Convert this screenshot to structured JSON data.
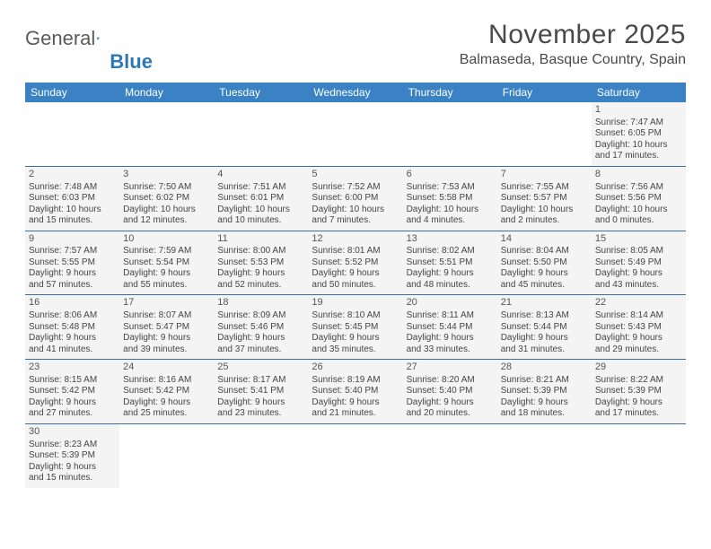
{
  "logo": {
    "part1": "General",
    "part2": "Blue"
  },
  "title": "November 2025",
  "location": "Balmaseda, Basque Country, Spain",
  "colors": {
    "header_bg": "#3a82c4",
    "header_text": "#ffffff",
    "border": "#3a6fa5",
    "cell_bg": "#f4f4f4",
    "text": "#454545",
    "logo_gray": "#5a5a5a",
    "logo_blue": "#2f78b7"
  },
  "day_names": [
    "Sunday",
    "Monday",
    "Tuesday",
    "Wednesday",
    "Thursday",
    "Friday",
    "Saturday"
  ],
  "weeks": [
    [
      {
        "blank": true
      },
      {
        "blank": true
      },
      {
        "blank": true
      },
      {
        "blank": true
      },
      {
        "blank": true
      },
      {
        "blank": true
      },
      {
        "num": "1",
        "sunrise": "Sunrise: 7:47 AM",
        "sunset": "Sunset: 6:05 PM",
        "day1": "Daylight: 10 hours",
        "day2": "and 17 minutes."
      }
    ],
    [
      {
        "num": "2",
        "sunrise": "Sunrise: 7:48 AM",
        "sunset": "Sunset: 6:03 PM",
        "day1": "Daylight: 10 hours",
        "day2": "and 15 minutes."
      },
      {
        "num": "3",
        "sunrise": "Sunrise: 7:50 AM",
        "sunset": "Sunset: 6:02 PM",
        "day1": "Daylight: 10 hours",
        "day2": "and 12 minutes."
      },
      {
        "num": "4",
        "sunrise": "Sunrise: 7:51 AM",
        "sunset": "Sunset: 6:01 PM",
        "day1": "Daylight: 10 hours",
        "day2": "and 10 minutes."
      },
      {
        "num": "5",
        "sunrise": "Sunrise: 7:52 AM",
        "sunset": "Sunset: 6:00 PM",
        "day1": "Daylight: 10 hours",
        "day2": "and 7 minutes."
      },
      {
        "num": "6",
        "sunrise": "Sunrise: 7:53 AM",
        "sunset": "Sunset: 5:58 PM",
        "day1": "Daylight: 10 hours",
        "day2": "and 4 minutes."
      },
      {
        "num": "7",
        "sunrise": "Sunrise: 7:55 AM",
        "sunset": "Sunset: 5:57 PM",
        "day1": "Daylight: 10 hours",
        "day2": "and 2 minutes."
      },
      {
        "num": "8",
        "sunrise": "Sunrise: 7:56 AM",
        "sunset": "Sunset: 5:56 PM",
        "day1": "Daylight: 10 hours",
        "day2": "and 0 minutes."
      }
    ],
    [
      {
        "num": "9",
        "sunrise": "Sunrise: 7:57 AM",
        "sunset": "Sunset: 5:55 PM",
        "day1": "Daylight: 9 hours",
        "day2": "and 57 minutes."
      },
      {
        "num": "10",
        "sunrise": "Sunrise: 7:59 AM",
        "sunset": "Sunset: 5:54 PM",
        "day1": "Daylight: 9 hours",
        "day2": "and 55 minutes."
      },
      {
        "num": "11",
        "sunrise": "Sunrise: 8:00 AM",
        "sunset": "Sunset: 5:53 PM",
        "day1": "Daylight: 9 hours",
        "day2": "and 52 minutes."
      },
      {
        "num": "12",
        "sunrise": "Sunrise: 8:01 AM",
        "sunset": "Sunset: 5:52 PM",
        "day1": "Daylight: 9 hours",
        "day2": "and 50 minutes."
      },
      {
        "num": "13",
        "sunrise": "Sunrise: 8:02 AM",
        "sunset": "Sunset: 5:51 PM",
        "day1": "Daylight: 9 hours",
        "day2": "and 48 minutes."
      },
      {
        "num": "14",
        "sunrise": "Sunrise: 8:04 AM",
        "sunset": "Sunset: 5:50 PM",
        "day1": "Daylight: 9 hours",
        "day2": "and 45 minutes."
      },
      {
        "num": "15",
        "sunrise": "Sunrise: 8:05 AM",
        "sunset": "Sunset: 5:49 PM",
        "day1": "Daylight: 9 hours",
        "day2": "and 43 minutes."
      }
    ],
    [
      {
        "num": "16",
        "sunrise": "Sunrise: 8:06 AM",
        "sunset": "Sunset: 5:48 PM",
        "day1": "Daylight: 9 hours",
        "day2": "and 41 minutes."
      },
      {
        "num": "17",
        "sunrise": "Sunrise: 8:07 AM",
        "sunset": "Sunset: 5:47 PM",
        "day1": "Daylight: 9 hours",
        "day2": "and 39 minutes."
      },
      {
        "num": "18",
        "sunrise": "Sunrise: 8:09 AM",
        "sunset": "Sunset: 5:46 PM",
        "day1": "Daylight: 9 hours",
        "day2": "and 37 minutes."
      },
      {
        "num": "19",
        "sunrise": "Sunrise: 8:10 AM",
        "sunset": "Sunset: 5:45 PM",
        "day1": "Daylight: 9 hours",
        "day2": "and 35 minutes."
      },
      {
        "num": "20",
        "sunrise": "Sunrise: 8:11 AM",
        "sunset": "Sunset: 5:44 PM",
        "day1": "Daylight: 9 hours",
        "day2": "and 33 minutes."
      },
      {
        "num": "21",
        "sunrise": "Sunrise: 8:13 AM",
        "sunset": "Sunset: 5:44 PM",
        "day1": "Daylight: 9 hours",
        "day2": "and 31 minutes."
      },
      {
        "num": "22",
        "sunrise": "Sunrise: 8:14 AM",
        "sunset": "Sunset: 5:43 PM",
        "day1": "Daylight: 9 hours",
        "day2": "and 29 minutes."
      }
    ],
    [
      {
        "num": "23",
        "sunrise": "Sunrise: 8:15 AM",
        "sunset": "Sunset: 5:42 PM",
        "day1": "Daylight: 9 hours",
        "day2": "and 27 minutes."
      },
      {
        "num": "24",
        "sunrise": "Sunrise: 8:16 AM",
        "sunset": "Sunset: 5:42 PM",
        "day1": "Daylight: 9 hours",
        "day2": "and 25 minutes."
      },
      {
        "num": "25",
        "sunrise": "Sunrise: 8:17 AM",
        "sunset": "Sunset: 5:41 PM",
        "day1": "Daylight: 9 hours",
        "day2": "and 23 minutes."
      },
      {
        "num": "26",
        "sunrise": "Sunrise: 8:19 AM",
        "sunset": "Sunset: 5:40 PM",
        "day1": "Daylight: 9 hours",
        "day2": "and 21 minutes."
      },
      {
        "num": "27",
        "sunrise": "Sunrise: 8:20 AM",
        "sunset": "Sunset: 5:40 PM",
        "day1": "Daylight: 9 hours",
        "day2": "and 20 minutes."
      },
      {
        "num": "28",
        "sunrise": "Sunrise: 8:21 AM",
        "sunset": "Sunset: 5:39 PM",
        "day1": "Daylight: 9 hours",
        "day2": "and 18 minutes."
      },
      {
        "num": "29",
        "sunrise": "Sunrise: 8:22 AM",
        "sunset": "Sunset: 5:39 PM",
        "day1": "Daylight: 9 hours",
        "day2": "and 17 minutes."
      }
    ],
    [
      {
        "num": "30",
        "sunrise": "Sunrise: 8:23 AM",
        "sunset": "Sunset: 5:39 PM",
        "day1": "Daylight: 9 hours",
        "day2": "and 15 minutes."
      },
      {
        "blank": true
      },
      {
        "blank": true
      },
      {
        "blank": true
      },
      {
        "blank": true
      },
      {
        "blank": true
      },
      {
        "blank": true
      }
    ]
  ]
}
